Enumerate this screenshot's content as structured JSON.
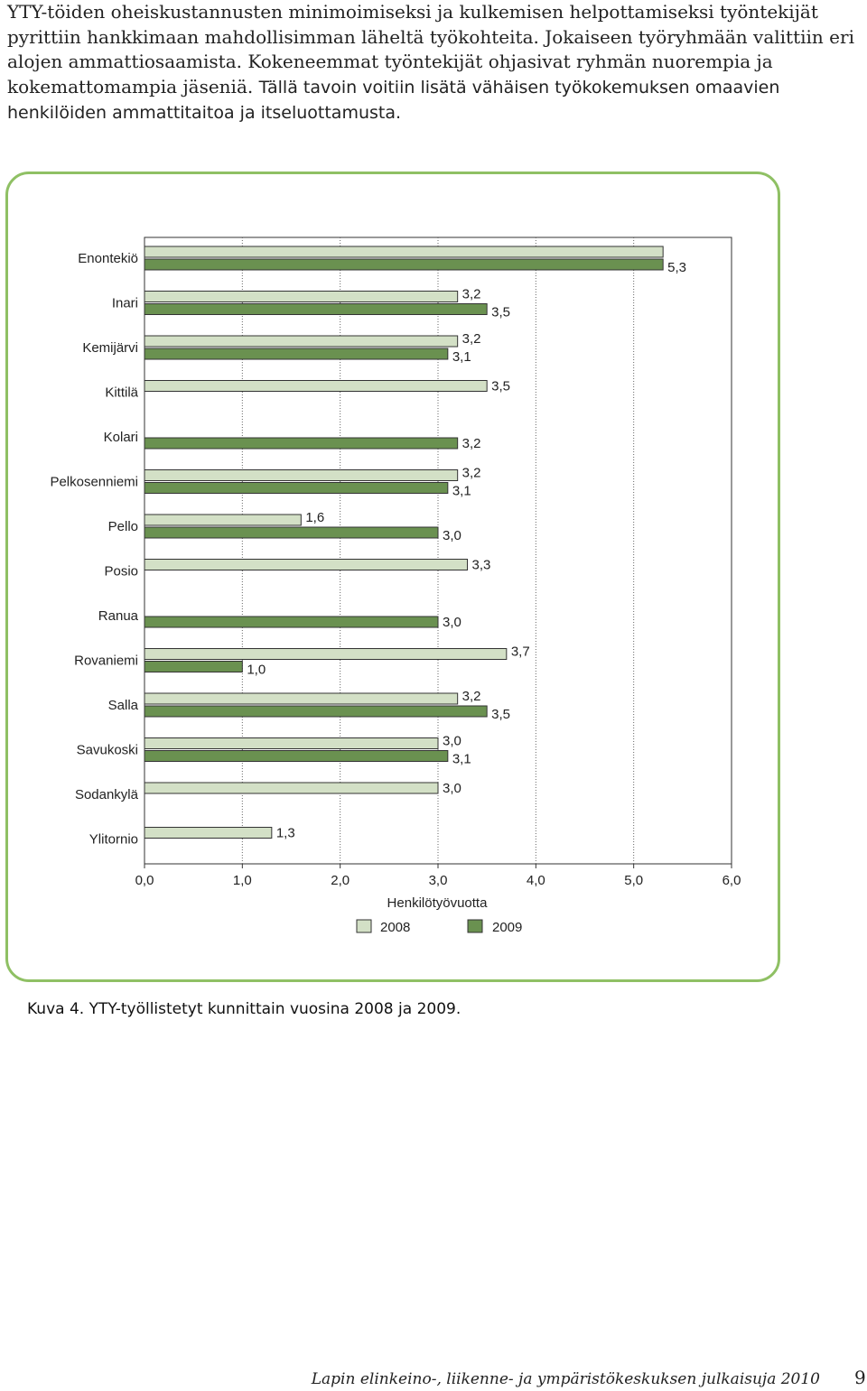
{
  "intro": {
    "text_serif": "YTY-töiden oheiskustannusten minimoimiseksi ja kulkemisen helpottamiseksi työntekijät pyrittiin hankkimaan mahdollisimman läheltä työkohteita. Jokaiseen työryhmään valittiin eri alojen ammattiosaamista. Kokeneemmat työntekijät ohjasivat ryhmän nuorempia ja kokemattomampia jäseniä.",
    "text_sans": "Tällä tavoin voitiin lisätä vähäisen työkokemuksen omaavien henkilöiden ammattitaitoa ja itseluottamusta."
  },
  "chart_data": {
    "type": "bar",
    "orientation": "horizontal",
    "categories": [
      "Enontekiö",
      "Inari",
      "Kemijärvi",
      "Kittilä",
      "Kolari",
      "Pelkosenniemi",
      "Pello",
      "Posio",
      "Ranua",
      "Rovaniemi",
      "Salla",
      "Savukoski",
      "Sodankylä",
      "Ylitornio"
    ],
    "series": [
      {
        "name": "2008",
        "color": "#d3e0c6",
        "values": [
          5.3,
          3.2,
          3.2,
          3.5,
          null,
          3.2,
          1.6,
          3.3,
          null,
          3.7,
          3.2,
          3.0,
          3.0,
          1.3
        ],
        "labels": [
          "",
          "3,2",
          "3,2",
          "3,5",
          "",
          "3,2",
          "1,6",
          "3,3",
          "",
          "3,7",
          "3,2",
          "3,0",
          "3,0",
          "1,3"
        ]
      },
      {
        "name": "2009",
        "color": "#6a9150",
        "values": [
          5.3,
          3.5,
          3.1,
          null,
          3.2,
          3.1,
          3.0,
          null,
          3.0,
          1.0,
          3.5,
          3.1,
          null,
          null
        ],
        "labels": [
          "5,3",
          "3,5",
          "3,1",
          "",
          "3,2",
          "3,1",
          "3,0",
          "",
          "3,0",
          "1,0",
          "3,5",
          "3,1",
          "",
          ""
        ]
      }
    ],
    "xlabel": "Henkilötyövuotta",
    "xlim": [
      0,
      6
    ],
    "xticks": [
      0,
      1,
      2,
      3,
      4,
      5,
      6
    ],
    "xtick_labels": [
      "0,0",
      "1,0",
      "2,0",
      "3,0",
      "4,0",
      "5,0",
      "6,0"
    ],
    "legend": [
      "2008",
      "2009"
    ],
    "legend_position": "bottom-center",
    "grid": "vertical dotted"
  },
  "caption": "Kuva 4. YTY-työllistetyt kunnittain vuosina 2008 ja 2009.",
  "footer": "Lapin elinkeino-, liikenne- ja ympäristökeskuksen julkaisuja 2010",
  "page_number": "9"
}
